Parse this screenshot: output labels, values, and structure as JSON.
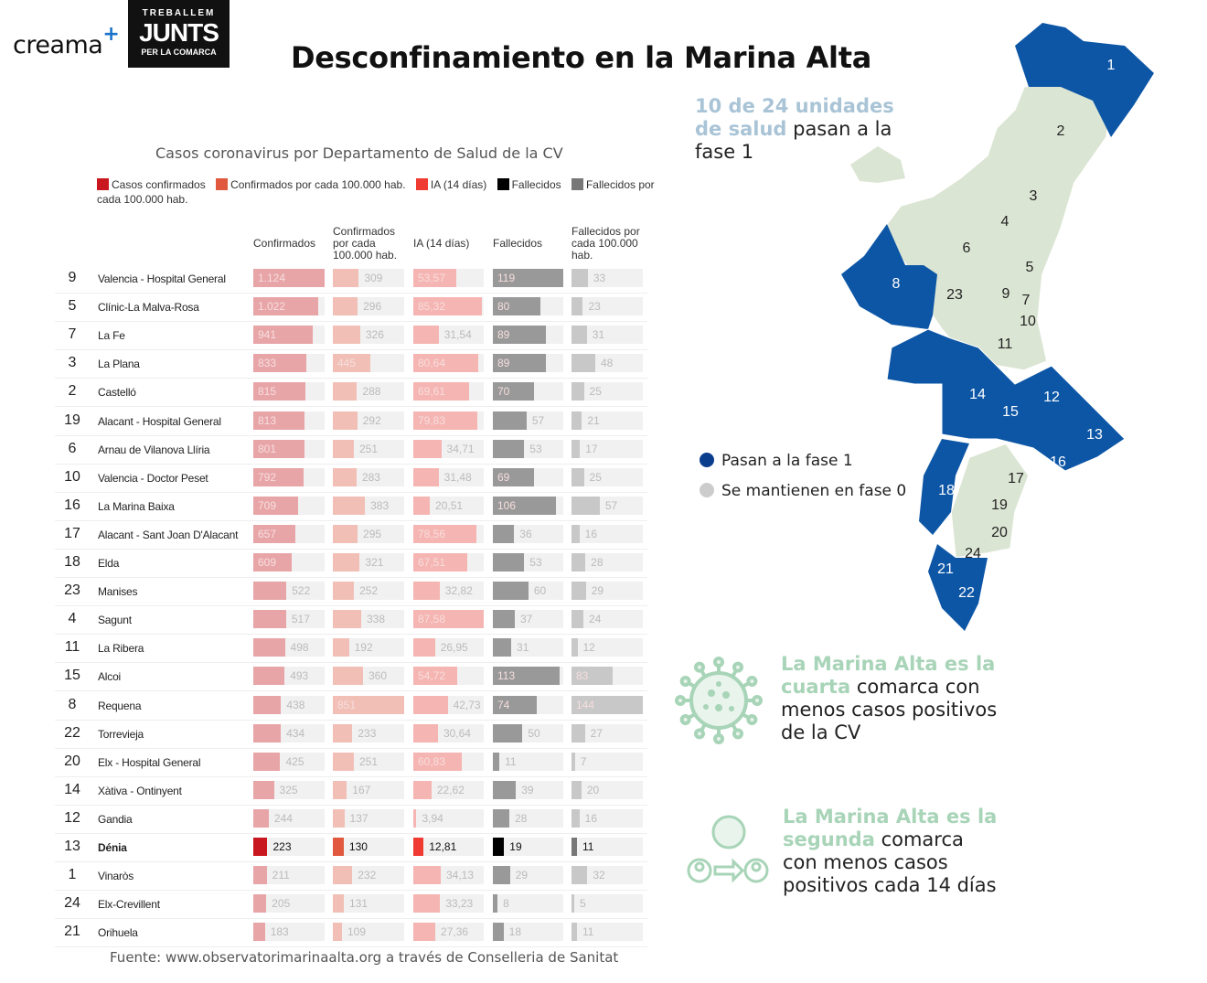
{
  "logos": {
    "creama": "creama",
    "creama_plus": "+",
    "junts_top": "TREBALLEM",
    "junts_main": "JUNTS",
    "junts_bottom": "PER LA COMARCA"
  },
  "title": "Desconfinamiento en la Marina Alta",
  "chart_data": {
    "type": "table",
    "title": "Casos coronavirus por Departamento de Salud de la CV",
    "legend": [
      {
        "label": "Casos confirmados",
        "color": "#c8171e"
      },
      {
        "label": "Confirmados por cada 100.000 hab.",
        "color": "#e0593f"
      },
      {
        "label": "IA (14 días)",
        "color": "#ef3b32"
      },
      {
        "label": "Fallecidos",
        "color": "#000000"
      },
      {
        "label": "Fallecidos por cada 100.000 hab.",
        "color": "#777777"
      }
    ],
    "columns": [
      "Confirmados",
      "Confirmados por cada 100.000 hab.",
      "IA (14 días)",
      "Fallecidos",
      "Fallecidos por cada 100.000 hab."
    ],
    "highlight": "Dénia",
    "rows": [
      {
        "num": "9",
        "name": "Valencia - Hospital General",
        "values": [
          "1.124",
          "309",
          "53,57",
          "119",
          "33"
        ]
      },
      {
        "num": "5",
        "name": "Clínic-La Malva-Rosa",
        "values": [
          "1.022",
          "296",
          "85,32",
          "80",
          "23"
        ]
      },
      {
        "num": "7",
        "name": "La Fe",
        "values": [
          "941",
          "326",
          "31,54",
          "89",
          "31"
        ]
      },
      {
        "num": "3",
        "name": "La Plana",
        "values": [
          "833",
          "445",
          "80,64",
          "89",
          "48"
        ]
      },
      {
        "num": "2",
        "name": "Castelló",
        "values": [
          "815",
          "288",
          "69,61",
          "70",
          "25"
        ]
      },
      {
        "num": "19",
        "name": "Alacant - Hospital General",
        "values": [
          "813",
          "292",
          "79,83",
          "57",
          "21"
        ]
      },
      {
        "num": "6",
        "name": "Arnau de Vilanova Llíria",
        "values": [
          "801",
          "251",
          "34,71",
          "53",
          "17"
        ]
      },
      {
        "num": "10",
        "name": "Valencia - Doctor Peset",
        "values": [
          "792",
          "283",
          "31,48",
          "69",
          "25"
        ]
      },
      {
        "num": "16",
        "name": "La Marina Baixa",
        "values": [
          "709",
          "383",
          "20,51",
          "106",
          "57"
        ]
      },
      {
        "num": "17",
        "name": "Alacant - Sant Joan D'Alacant",
        "values": [
          "657",
          "295",
          "78,56",
          "36",
          "16"
        ]
      },
      {
        "num": "18",
        "name": "Elda",
        "values": [
          "609",
          "321",
          "67,51",
          "53",
          "28"
        ]
      },
      {
        "num": "23",
        "name": "Manises",
        "values": [
          "522",
          "252",
          "32,82",
          "60",
          "29"
        ]
      },
      {
        "num": "4",
        "name": "Sagunt",
        "values": [
          "517",
          "338",
          "87,58",
          "37",
          "24"
        ]
      },
      {
        "num": "11",
        "name": "La Ribera",
        "values": [
          "498",
          "192",
          "26,95",
          "31",
          "12"
        ]
      },
      {
        "num": "15",
        "name": "Alcoi",
        "values": [
          "493",
          "360",
          "54,72",
          "113",
          "83"
        ]
      },
      {
        "num": "8",
        "name": "Requena",
        "values": [
          "438",
          "851",
          "42,73",
          "74",
          "144"
        ]
      },
      {
        "num": "22",
        "name": "Torrevieja",
        "values": [
          "434",
          "233",
          "30,64",
          "50",
          "27"
        ]
      },
      {
        "num": "20",
        "name": "Elx - Hospital General",
        "values": [
          "425",
          "251",
          "60,83",
          "11",
          "7"
        ]
      },
      {
        "num": "14",
        "name": "Xàtiva - Ontinyent",
        "values": [
          "325",
          "167",
          "22,62",
          "39",
          "20"
        ]
      },
      {
        "num": "12",
        "name": "Gandia",
        "values": [
          "244",
          "137",
          "3,94",
          "28",
          "16"
        ]
      },
      {
        "num": "13",
        "name": "Dénia",
        "values": [
          "223",
          "130",
          "12,81",
          "19",
          "11"
        ]
      },
      {
        "num": "1",
        "name": "Vinaròs",
        "values": [
          "211",
          "232",
          "34,13",
          "29",
          "32"
        ]
      },
      {
        "num": "24",
        "name": "Elx-Crevillent",
        "values": [
          "205",
          "131",
          "33,23",
          "8",
          "5"
        ]
      },
      {
        "num": "21",
        "name": "Orihuela",
        "values": [
          "183",
          "109",
          "27,36",
          "18",
          "11"
        ]
      }
    ]
  },
  "headers": {
    "c1": "Confirmados",
    "c2": "Confirmados por cada 100.000 hab.",
    "c3": "IA (14 días)",
    "c4": "Fallecidos",
    "c5": "Fallecidos por cada 100.000 hab."
  },
  "legend_labels": {
    "l1": "Casos confirmados",
    "l2": "Confirmados por cada 100.000 hab.",
    "l3": "IA (14 días)",
    "l4": "Fallecidos",
    "l5": "Fallecidos por cada 100.000 hab."
  },
  "footer": "Fuente: www.observatorimarinaalta.org a través de Conselleria de Sanitat",
  "map": {
    "note_highlight": "10 de 24 unidades de salud",
    "note_rest": " pasan a la fase 1",
    "legend": [
      {
        "label": "Pasan a la fase 1",
        "color": "#0a3d8c"
      },
      {
        "label": "Se mantienen en fase 0",
        "color": "#cccccc"
      }
    ],
    "phase1_color": "#0d56a6",
    "phase0_color": "#dbe5d3",
    "labels": [
      "1",
      "2",
      "3",
      "4",
      "5",
      "6",
      "7",
      "8",
      "9",
      "10",
      "11",
      "12",
      "13",
      "14",
      "15",
      "16",
      "17",
      "18",
      "19",
      "20",
      "21",
      "22",
      "23",
      "24"
    ]
  },
  "facts": [
    {
      "highlight": "La Marina Alta es la cuarta",
      "rest": " comarca con menos casos positivos de la CV",
      "icon": "virus-icon"
    },
    {
      "highlight": "La Marina Alta es la segunda",
      "rest": " comarca con menos casos positivos cada 14 días",
      "icon": "virus-transmission-icon"
    }
  ]
}
